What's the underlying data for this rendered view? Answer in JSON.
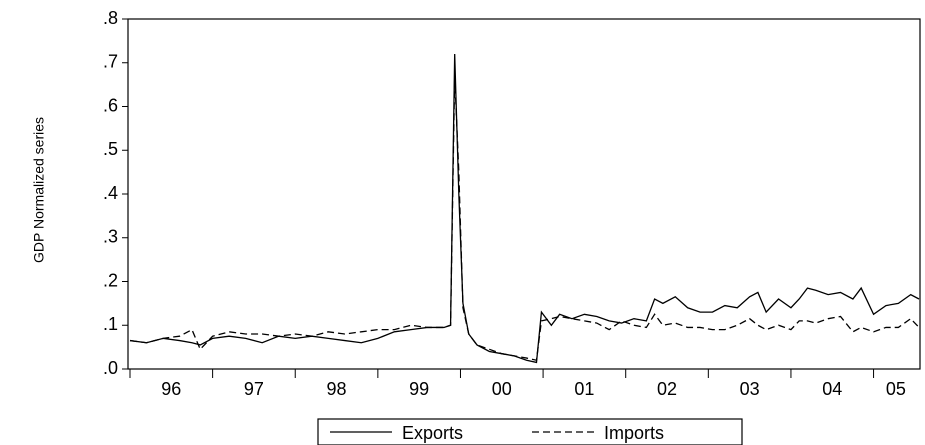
{
  "chart_data": {
    "type": "line",
    "ylabel": "GDP Normalized series",
    "x": [
      1996,
      1996.2,
      1996.4,
      1996.6,
      1996.75,
      1996.85,
      1997,
      1997.2,
      1997.4,
      1997.6,
      1997.8,
      1998,
      1998.2,
      1998.4,
      1998.6,
      1998.8,
      1999,
      1999.2,
      1999.4,
      1999.6,
      1999.8,
      1999.88,
      1999.93,
      1999.98,
      2000.03,
      2000.1,
      2000.2,
      2000.35,
      2000.5,
      2000.65,
      2000.8,
      2000.92,
      2000.98,
      2001.1,
      2001.2,
      2001.35,
      2001.5,
      2001.65,
      2001.8,
      2001.95,
      2002.1,
      2002.25,
      2002.35,
      2002.45,
      2002.6,
      2002.75,
      2002.9,
      2003.05,
      2003.2,
      2003.35,
      2003.5,
      2003.6,
      2003.7,
      2003.85,
      2004,
      2004.1,
      2004.2,
      2004.3,
      2004.45,
      2004.6,
      2004.75,
      2004.85,
      2005,
      2005.15,
      2005.3,
      2005.45,
      2005.55
    ],
    "series": [
      {
        "name": "Exports",
        "color": "#000000",
        "dash": "solid",
        "values": [
          0.065,
          0.06,
          0.07,
          0.065,
          0.06,
          0.055,
          0.07,
          0.075,
          0.07,
          0.06,
          0.075,
          0.07,
          0.075,
          0.07,
          0.065,
          0.06,
          0.07,
          0.085,
          0.09,
          0.095,
          0.095,
          0.1,
          0.72,
          0.4,
          0.15,
          0.08,
          0.055,
          0.04,
          0.035,
          0.03,
          0.02,
          0.015,
          0.13,
          0.1,
          0.125,
          0.115,
          0.125,
          0.12,
          0.11,
          0.105,
          0.115,
          0.11,
          0.16,
          0.15,
          0.165,
          0.14,
          0.13,
          0.13,
          0.145,
          0.14,
          0.165,
          0.175,
          0.13,
          0.16,
          0.14,
          0.16,
          0.185,
          0.18,
          0.17,
          0.175,
          0.16,
          0.185,
          0.125,
          0.145,
          0.15,
          0.17,
          0.16
        ]
      },
      {
        "name": "Imports",
        "color": "#000000",
        "dash": "dashed",
        "values": [
          0.065,
          0.06,
          0.07,
          0.075,
          0.09,
          0.045,
          0.075,
          0.085,
          0.08,
          0.08,
          0.075,
          0.08,
          0.075,
          0.085,
          0.08,
          0.085,
          0.09,
          0.09,
          0.1,
          0.095,
          0.095,
          0.1,
          0.67,
          0.45,
          0.14,
          0.08,
          0.055,
          0.045,
          0.035,
          0.03,
          0.025,
          0.02,
          0.11,
          0.115,
          0.12,
          0.115,
          0.11,
          0.105,
          0.09,
          0.11,
          0.1,
          0.095,
          0.125,
          0.1,
          0.105,
          0.095,
          0.095,
          0.09,
          0.09,
          0.1,
          0.115,
          0.1,
          0.09,
          0.1,
          0.09,
          0.11,
          0.11,
          0.105,
          0.115,
          0.12,
          0.085,
          0.095,
          0.085,
          0.095,
          0.095,
          0.115,
          0.095
        ]
      }
    ],
    "xlim": [
      1996,
      2005.55
    ],
    "xticks": [
      1996,
      1997,
      1998,
      1999,
      2000,
      2001,
      2002,
      2003,
      2004,
      2005
    ],
    "xticklabels": [
      {
        "value": 1996.5,
        "label": "96"
      },
      {
        "value": 1997.5,
        "label": "97"
      },
      {
        "value": 1998.5,
        "label": "98"
      },
      {
        "value": 1999.5,
        "label": "99"
      },
      {
        "value": 2000.5,
        "label": "00"
      },
      {
        "value": 2001.5,
        "label": "01"
      },
      {
        "value": 2002.5,
        "label": "02"
      },
      {
        "value": 2003.5,
        "label": "03"
      },
      {
        "value": 2004.5,
        "label": "04"
      },
      {
        "value": 2005.27,
        "label": "05"
      }
    ],
    "ylim": [
      0,
      0.8
    ],
    "yticks": [
      {
        "value": 0,
        "label": ".0"
      },
      {
        "value": 0.1,
        "label": ".1"
      },
      {
        "value": 0.2,
        "label": ".2"
      },
      {
        "value": 0.3,
        "label": ".3"
      },
      {
        "value": 0.4,
        "label": ".4"
      },
      {
        "value": 0.5,
        "label": ".5"
      },
      {
        "value": 0.6,
        "label": ".6"
      },
      {
        "value": 0.7,
        "label": ".7"
      },
      {
        "value": 0.8,
        "label": ".8"
      }
    ],
    "grid": false
  }
}
